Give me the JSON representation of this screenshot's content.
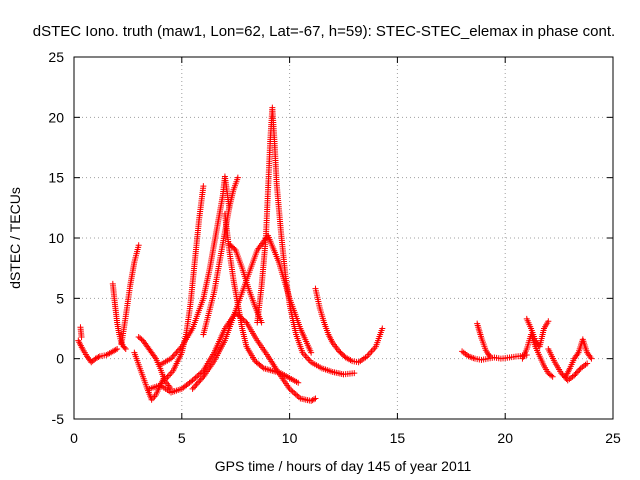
{
  "chart_data": {
    "type": "scatter",
    "title": "dSTEC Iono. truth (maw1, Lon=62, Lat=-67, h=59): STEC-STEC_elemax in phase cont.",
    "xlabel": "GPS time / hours of day 145 of year 2011",
    "ylabel": "dSTEC  / TECUs",
    "xlim": [
      0,
      25
    ],
    "ylim": [
      -5,
      25
    ],
    "xticks": [
      0,
      5,
      10,
      15,
      20,
      25
    ],
    "yticks": [
      -5,
      0,
      5,
      10,
      15,
      20,
      25
    ],
    "grid": true,
    "marker": "+",
    "color": "#ff0000",
    "series": [
      {
        "x": [
          0.2,
          0.4,
          0.6,
          0.8,
          1.0,
          1.2,
          1.5,
          1.8,
          2.0
        ],
        "y": [
          1.5,
          0.8,
          0.2,
          -0.3,
          0.0,
          0.2,
          0.3,
          0.6,
          0.8
        ]
      },
      {
        "x": [
          0.3,
          0.35
        ],
        "y": [
          2.6,
          1.8
        ]
      },
      {
        "x": [
          1.8,
          1.9,
          2.0,
          2.1,
          2.2,
          2.3,
          2.4
        ],
        "y": [
          6.2,
          4.5,
          3.0,
          2.0,
          1.3,
          1.0,
          0.8
        ]
      },
      {
        "x": [
          2.2,
          2.4,
          2.6,
          2.8,
          3.0
        ],
        "y": [
          1.2,
          3.5,
          6.0,
          8.0,
          9.4
        ]
      },
      {
        "x": [
          2.8,
          3.0,
          3.2,
          3.4,
          3.6,
          3.8,
          4.0,
          4.2
        ],
        "y": [
          0.5,
          -0.5,
          -1.5,
          -2.5,
          -3.4,
          -3.0,
          -2.2,
          -1.5
        ]
      },
      {
        "x": [
          3.0,
          3.2,
          3.4,
          3.6,
          3.8,
          4.0,
          4.2,
          4.5
        ],
        "y": [
          1.8,
          1.5,
          1.0,
          0.5,
          0.0,
          -0.8,
          -1.8,
          -2.5
        ]
      },
      {
        "x": [
          3.5,
          4.0,
          4.5,
          5.0,
          5.5,
          6.0,
          6.5,
          7.0,
          7.5,
          8.0,
          8.5,
          9.0,
          9.5,
          10.0,
          10.5,
          11.0,
          11.2
        ],
        "y": [
          -2.5,
          -2.2,
          -2.8,
          -2.5,
          -1.8,
          -1.0,
          0.5,
          2.5,
          3.8,
          3.0,
          1.5,
          0.2,
          -1.2,
          -2.5,
          -3.3,
          -3.5,
          -3.3
        ]
      },
      {
        "x": [
          4.2,
          4.6,
          5.0,
          5.2,
          5.4,
          5.6,
          5.8,
          6.0
        ],
        "y": [
          -1.8,
          -1.0,
          0.5,
          2.0,
          4.5,
          8.0,
          11.5,
          14.3
        ]
      },
      {
        "x": [
          4.0,
          4.5,
          5.0,
          5.5,
          6.0,
          6.3,
          6.5,
          6.7,
          6.9,
          7.0,
          7.2
        ],
        "y": [
          -0.5,
          0.0,
          1.0,
          2.5,
          5.0,
          7.5,
          9.5,
          11.5,
          13.5,
          15.1,
          12.5
        ]
      },
      {
        "x": [
          7.0,
          7.2,
          7.4,
          7.6,
          7.8,
          8.0,
          8.4,
          8.8,
          9.2,
          9.6,
          10.0,
          10.4
        ],
        "y": [
          12.0,
          9.0,
          6.5,
          4.5,
          2.5,
          1.0,
          -0.2,
          -0.8,
          -1.0,
          -1.2,
          -1.6,
          -2.0
        ]
      },
      {
        "x": [
          6.0,
          6.5,
          7.0,
          7.2,
          7.4,
          7.6
        ],
        "y": [
          2.0,
          5.5,
          10.5,
          12.5,
          14.0,
          15.0
        ]
      },
      {
        "x": [
          7.2,
          7.5,
          7.8,
          8.1,
          8.4,
          8.7
        ],
        "y": [
          9.5,
          9.0,
          7.5,
          5.8,
          4.3,
          3.0
        ]
      },
      {
        "x": [
          5.5,
          6.0,
          6.5,
          7.0,
          7.5,
          8.0,
          8.5,
          9.0,
          9.5,
          10.0,
          10.5,
          11.0
        ],
        "y": [
          -2.5,
          -1.5,
          -0.2,
          1.5,
          4.0,
          6.5,
          9.0,
          10.2,
          8.0,
          5.0,
          2.5,
          0.5
        ]
      },
      {
        "x": [
          8.5,
          8.7,
          8.9,
          9.0,
          9.1,
          9.2,
          9.3,
          9.4,
          9.6,
          9.8,
          10.0,
          10.3,
          10.6,
          11.0,
          11.5,
          12.0,
          12.5,
          13.0
        ],
        "y": [
          3.0,
          6.0,
          10.0,
          14.0,
          18.0,
          20.8,
          18.0,
          14.5,
          10.5,
          7.0,
          4.5,
          2.0,
          0.5,
          -0.3,
          -0.8,
          -1.1,
          -1.3,
          -1.2
        ]
      },
      {
        "x": [
          11.2,
          11.4,
          11.6,
          11.8,
          12.0,
          12.3,
          12.6,
          12.9,
          13.2,
          13.6,
          14.0,
          14.3
        ],
        "y": [
          5.8,
          4.2,
          3.0,
          2.0,
          1.3,
          0.6,
          0.1,
          -0.2,
          -0.3,
          0.2,
          1.0,
          2.5
        ]
      },
      {
        "x": [
          18.0,
          18.3,
          18.6,
          18.9,
          19.2,
          19.5,
          19.8,
          20.2,
          20.6,
          21.0
        ],
        "y": [
          0.6,
          0.2,
          0.0,
          -0.1,
          0.0,
          0.1,
          0.0,
          0.1,
          0.2,
          0.3
        ]
      },
      {
        "x": [
          18.7,
          18.8,
          18.9,
          19.0,
          19.1,
          19.2,
          19.3
        ],
        "y": [
          2.9,
          2.3,
          1.7,
          1.2,
          0.7,
          0.4,
          0.2
        ]
      },
      {
        "x": [
          20.8,
          21.0,
          21.2,
          21.4,
          21.6,
          21.8,
          22.0,
          22.2
        ],
        "y": [
          0.0,
          0.8,
          2.0,
          1.0,
          0.2,
          -0.6,
          -1.2,
          -1.5
        ]
      },
      {
        "x": [
          21.0,
          21.2,
          21.4,
          21.6,
          21.8,
          22.0
        ],
        "y": [
          3.3,
          2.5,
          1.5,
          1.0,
          2.5,
          3.1
        ]
      },
      {
        "x": [
          22.0,
          22.3,
          22.6,
          22.9,
          23.2,
          23.5,
          23.8
        ],
        "y": [
          0.8,
          -0.3,
          -1.2,
          -1.8,
          -1.4,
          -0.8,
          -0.4
        ]
      },
      {
        "x": [
          22.8,
          23.0,
          23.2,
          23.4,
          23.6,
          23.8,
          24.0
        ],
        "y": [
          -1.5,
          -0.8,
          0.0,
          0.5,
          1.6,
          0.5,
          0.0
        ]
      }
    ]
  }
}
